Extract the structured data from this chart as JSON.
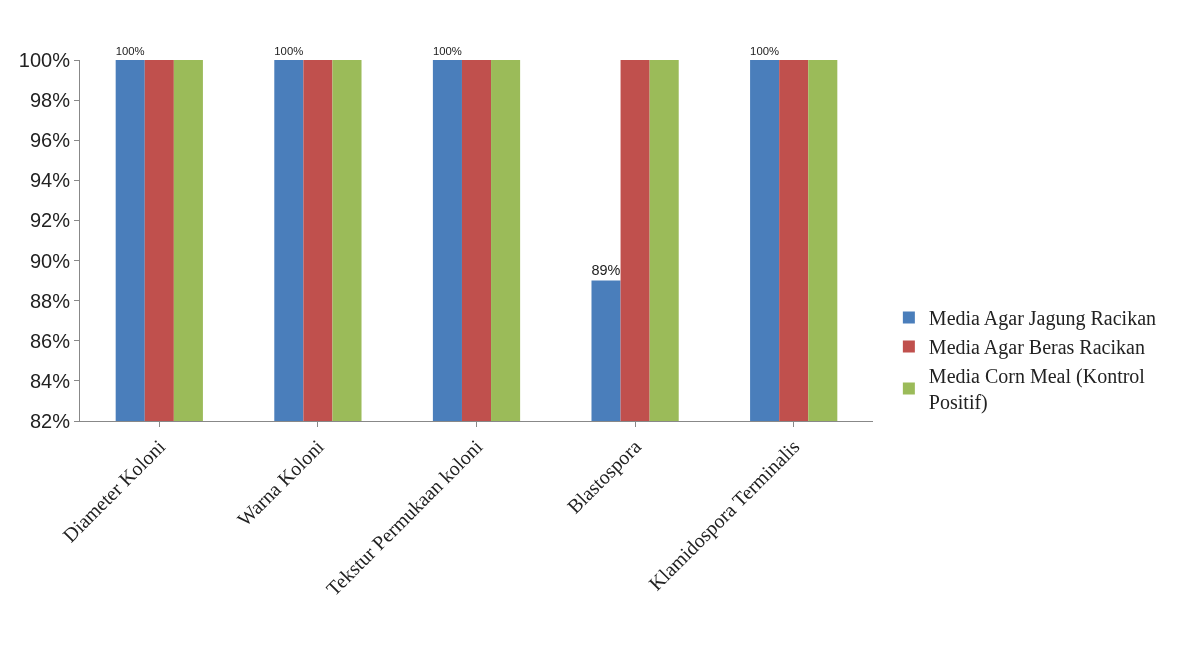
{
  "chart_data": {
    "type": "bar",
    "categories": [
      "Diameter Koloni",
      "Warna Koloni",
      "Tekstur Permukaan koloni",
      "Blastospora",
      "Klamidospora Terminalis"
    ],
    "series": [
      {
        "name": "Media Agar Jagung Racikan",
        "color": "#4a7ebb",
        "values": [
          100,
          100,
          100,
          89,
          100
        ],
        "value_labels": [
          "100%",
          "100%",
          "100%",
          "89%",
          "100%"
        ]
      },
      {
        "name": "Media Agar Beras Racikan",
        "color": "#c0504d",
        "values": [
          100,
          100,
          100,
          100,
          100
        ]
      },
      {
        "name": "Media Corn Meal (Kontrol Positif)",
        "color": "#9bbb59",
        "values": [
          100,
          100,
          100,
          100,
          100
        ]
      }
    ],
    "ylim": [
      82,
      100
    ],
    "yticks": [
      {
        "value": 82,
        "label": "82%"
      },
      {
        "value": 84,
        "label": "84%"
      },
      {
        "value": 86,
        "label": "86%"
      },
      {
        "value": 88,
        "label": "88%"
      },
      {
        "value": 90,
        "label": "90%"
      },
      {
        "value": 92,
        "label": "92%"
      },
      {
        "value": 94,
        "label": "94%"
      },
      {
        "value": 96,
        "label": "96%"
      },
      {
        "value": 98,
        "label": "98%"
      },
      {
        "value": 100,
        "label": "100%"
      }
    ],
    "grid": false,
    "legend": "right"
  }
}
